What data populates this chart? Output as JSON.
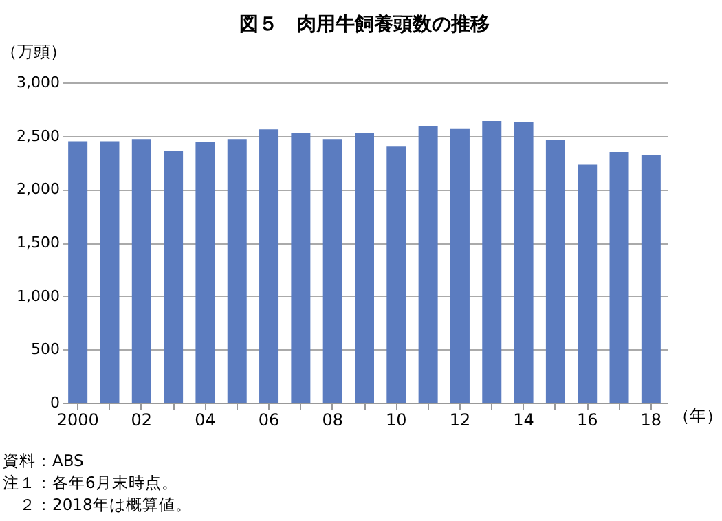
{
  "chart_data": {
    "type": "bar",
    "title": "図５　肉用牛飼養頭数の推移",
    "ylabel": "（万頭）",
    "xlabel": "（年）",
    "categories": [
      "2000",
      null,
      "02",
      null,
      "04",
      null,
      "06",
      null,
      "08",
      null,
      "10",
      null,
      "12",
      null,
      "14",
      null,
      "16",
      null,
      "18"
    ],
    "values": [
      2450,
      2450,
      2470,
      2360,
      2440,
      2470,
      2560,
      2530,
      2470,
      2530,
      2400,
      2590,
      2570,
      2640,
      2630,
      2460,
      2230,
      2350,
      2320
    ],
    "color": "#5b7cc0",
    "ylim": [
      0,
      3000
    ],
    "yticks": [
      0,
      500,
      {
        "value": 1000,
        "label": "1,000"
      },
      {
        "value": 1500,
        "label": "1,500"
      },
      {
        "value": 2000,
        "label": "2,000"
      },
      {
        "value": 2500,
        "label": "2,500"
      },
      {
        "value": 3000,
        "label": "3,000"
      }
    ],
    "grid": "y",
    "annotations": [
      "資料：ABS",
      "注１：各年6月末時点。",
      "　２：2018年は概算値。"
    ]
  }
}
